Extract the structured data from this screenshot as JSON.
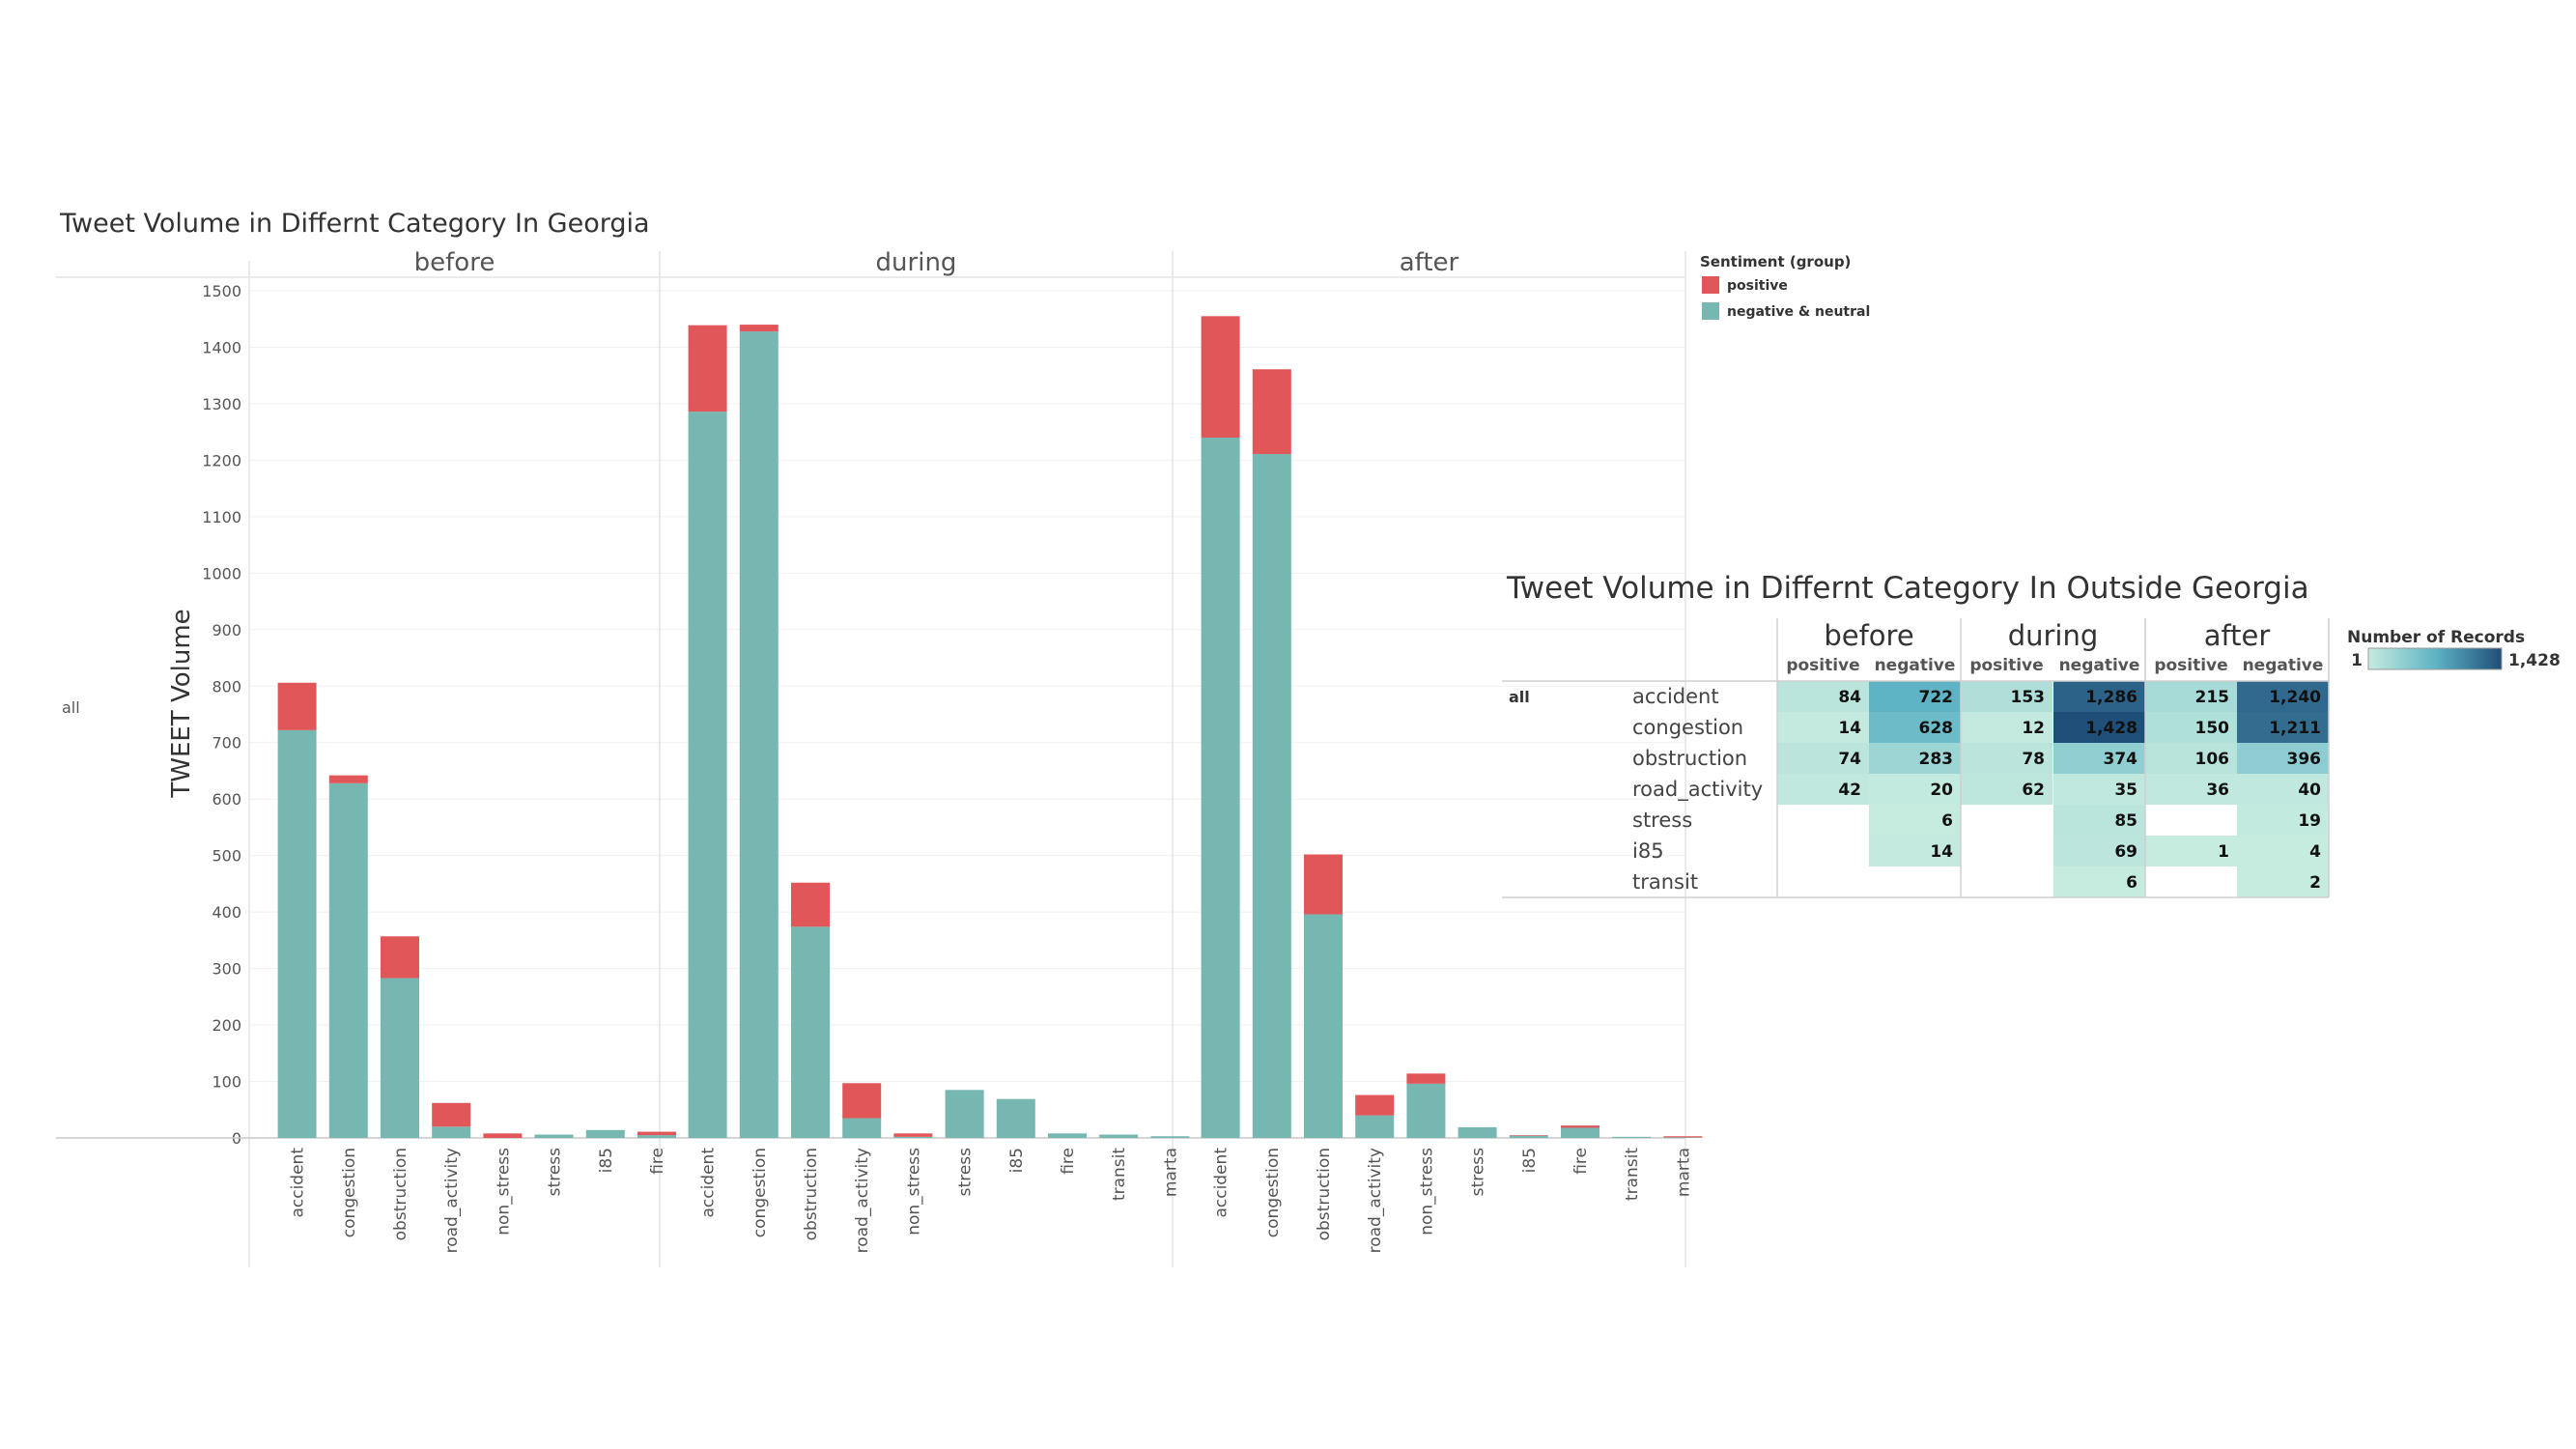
{
  "chart_data": [
    {
      "type": "bar",
      "stacked": true,
      "title": "Tweet Volume in Differnt Category In Georgia",
      "ylabel": "TWEET Volume",
      "row_label": "all",
      "ylim": [
        0,
        1500
      ],
      "yticks": [
        0,
        100,
        200,
        300,
        400,
        500,
        600,
        700,
        800,
        900,
        1000,
        1100,
        1200,
        1300,
        1400,
        1500
      ],
      "grid": true,
      "legend_position": "top-right",
      "legend": {
        "title": "Sentiment (group)",
        "items": [
          {
            "name": "positive",
            "color": "#e15759"
          },
          {
            "name": "negative & neutral",
            "color": "#76b7b2"
          }
        ]
      },
      "panels": [
        {
          "name": "before",
          "categories": [
            "accident",
            "congestion",
            "obstruction",
            "road_activity",
            "non_stress",
            "stress",
            "i85",
            "fire"
          ],
          "series": [
            {
              "name": "negative & neutral",
              "values": [
                722,
                628,
                283,
                20,
                0,
                6,
                14,
                5
              ]
            },
            {
              "name": "positive",
              "values": [
                84,
                14,
                74,
                42,
                8,
                0,
                0,
                6
              ]
            }
          ]
        },
        {
          "name": "during",
          "categories": [
            "accident",
            "congestion",
            "obstruction",
            "road_activity",
            "non_stress",
            "stress",
            "i85",
            "fire",
            "transit",
            "marta"
          ],
          "series": [
            {
              "name": "negative & neutral",
              "values": [
                1286,
                1428,
                374,
                35,
                2,
                85,
                69,
                8,
                6,
                3
              ]
            },
            {
              "name": "positive",
              "values": [
                153,
                12,
                78,
                62,
                6,
                0,
                0,
                0,
                0,
                0
              ]
            }
          ]
        },
        {
          "name": "after",
          "categories": [
            "accident",
            "congestion",
            "obstruction",
            "road_activity",
            "non_stress",
            "stress",
            "i85",
            "fire",
            "transit",
            "marta"
          ],
          "series": [
            {
              "name": "negative & neutral",
              "values": [
                1240,
                1211,
                396,
                40,
                96,
                19,
                4,
                18,
                2,
                1
              ]
            },
            {
              "name": "positive",
              "values": [
                215,
                150,
                106,
                36,
                18,
                0,
                1,
                4,
                0,
                2
              ]
            }
          ]
        }
      ]
    },
    {
      "type": "table",
      "subtype": "heatmap",
      "title": "Tweet Volume in Differnt Category In Outside Georgia",
      "row_label": "all",
      "periods": [
        "before",
        "during",
        "after"
      ],
      "sentiments": [
        "positive",
        "negative"
      ],
      "categories": [
        "accident",
        "congestion",
        "obstruction",
        "road_activity",
        "stress",
        "i85",
        "transit"
      ],
      "values": [
        [
          "84",
          "722",
          "153",
          "1,286",
          "215",
          "1,240"
        ],
        [
          "14",
          "628",
          "12",
          "1,428",
          "150",
          "1,211"
        ],
        [
          "74",
          "283",
          "78",
          "374",
          "106",
          "396"
        ],
        [
          "42",
          "20",
          "62",
          "35",
          "36",
          "40"
        ],
        [
          "",
          "6",
          "",
          "85",
          "",
          "19"
        ],
        [
          "",
          "14",
          "",
          "69",
          "1",
          "4"
        ],
        [
          "",
          "",
          "",
          "6",
          "",
          "2"
        ]
      ],
      "color_scale": {
        "title": "Number of Records",
        "min": 1,
        "max": 1428,
        "min_label": "1",
        "max_label": "1,428",
        "colors": [
          "#c6ebdf",
          "#5fb4c5",
          "#1f4e79"
        ]
      }
    }
  ]
}
